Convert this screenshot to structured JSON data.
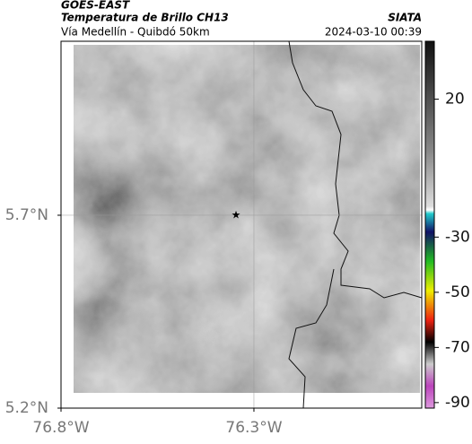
{
  "header": {
    "source": "GOES-EAST",
    "title": "Temperatura de Brillo CH13",
    "subtitle": "Vía Medellín - Quibdó 50km",
    "brand": "SIATA",
    "timestamp": "2024-03-10 00:39"
  },
  "map": {
    "xlim": [
      -76.8,
      -75.865
    ],
    "ylim": [
      5.2,
      6.151
    ],
    "xticks": [
      {
        "value": -76.8,
        "label": "76.8°W"
      },
      {
        "value": -76.3,
        "label": "76.3°W"
      }
    ],
    "yticks": [
      {
        "value": 5.2,
        "label": "5.2°N"
      },
      {
        "value": 5.7,
        "label": "5.7°N"
      }
    ],
    "grid": true
  },
  "colorbar": {
    "lim": [
      -92,
      41
    ],
    "ticks": [
      20,
      -30,
      -50,
      -70,
      -90
    ]
  }
}
